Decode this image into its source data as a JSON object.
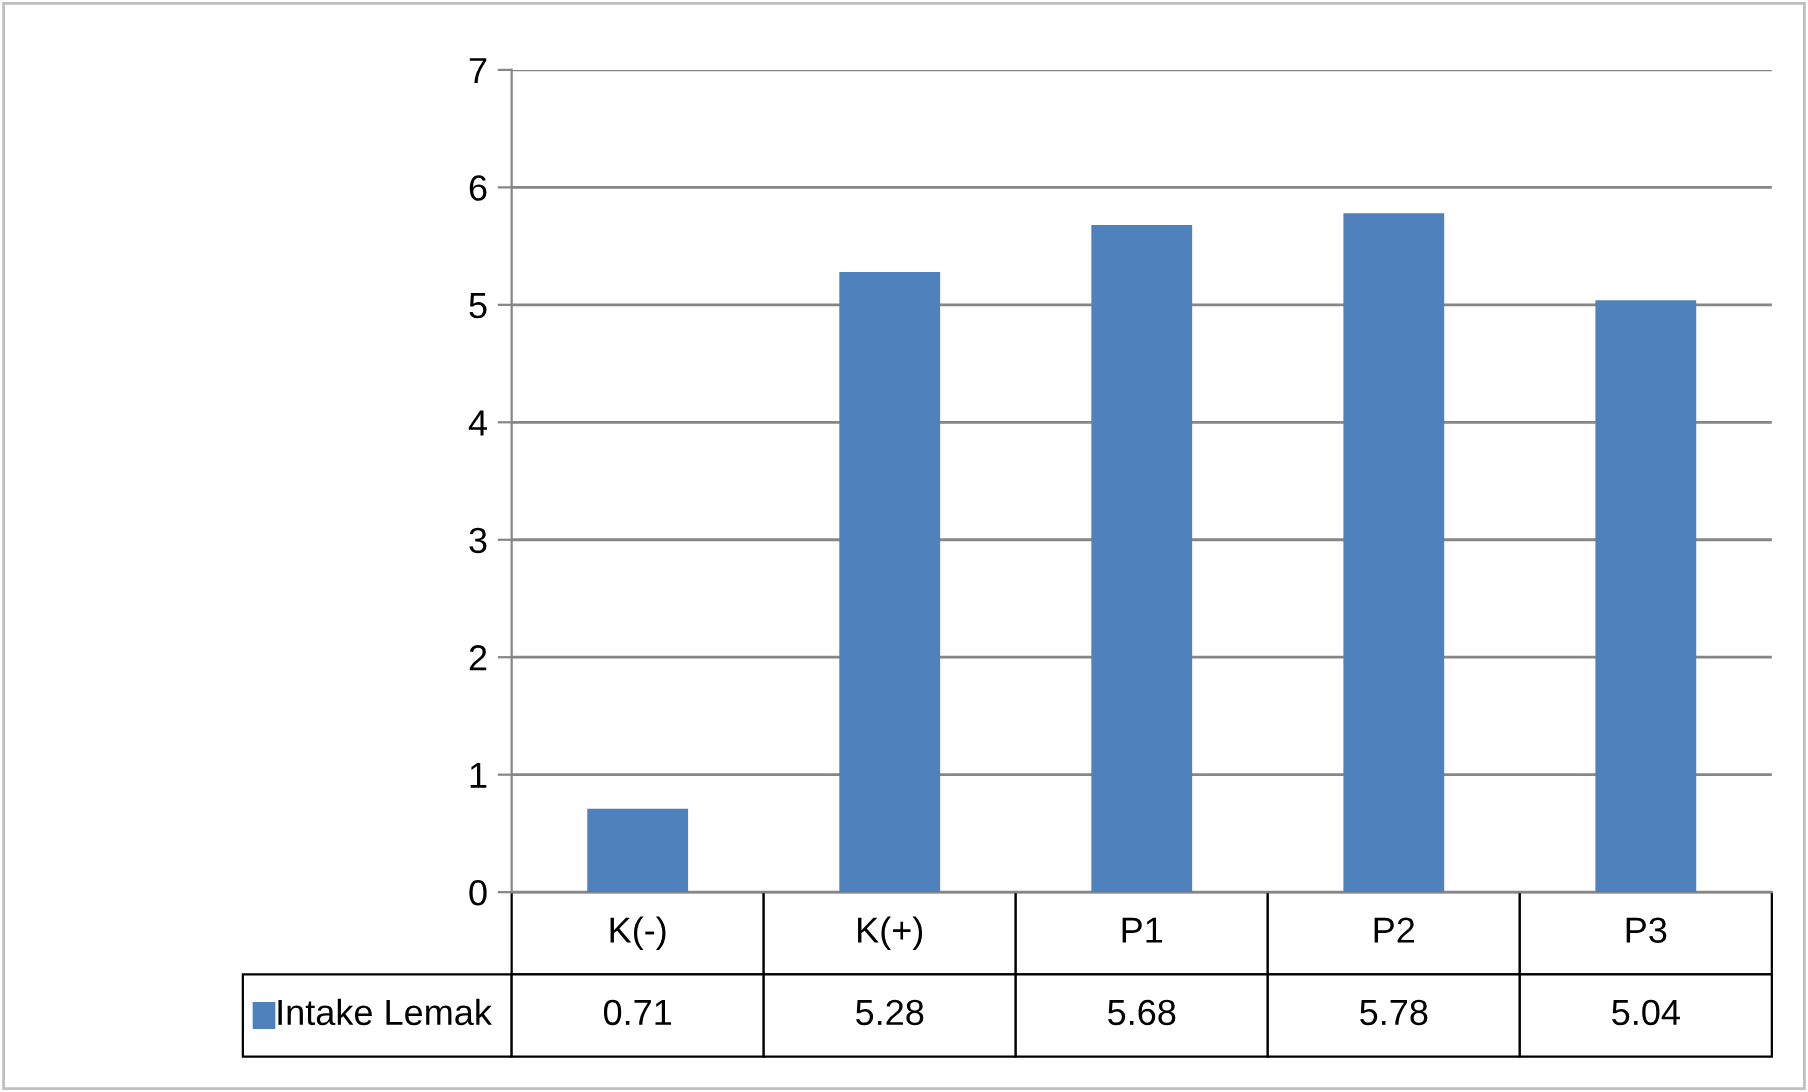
{
  "chart_data": {
    "type": "bar",
    "categories": [
      "K(-)",
      "K(+)",
      "P1",
      "P2",
      "P3"
    ],
    "series": [
      {
        "name": "Intake Lemak",
        "color": "#4f81bd",
        "values": [
          0.71,
          5.28,
          5.68,
          5.78,
          5.04
        ]
      }
    ],
    "ylim": [
      0,
      7
    ],
    "yticks": [
      0,
      1,
      2,
      3,
      4,
      5,
      6,
      7
    ],
    "grid": "y",
    "data_labels": true,
    "legend": "bottom"
  }
}
